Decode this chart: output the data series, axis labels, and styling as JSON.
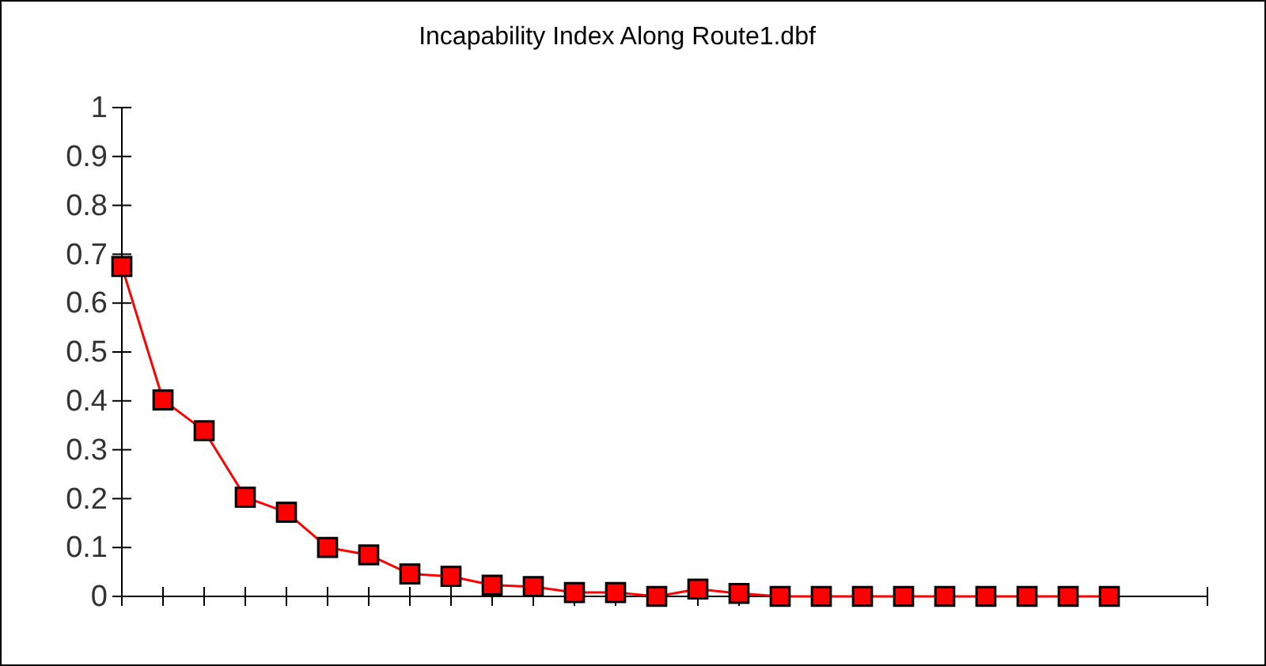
{
  "chart_data": {
    "type": "line",
    "title": "Incapability Index Along Route1.dbf",
    "categories": [
      null,
      null,
      null,
      null,
      null,
      null,
      null,
      null,
      null,
      null,
      null,
      null,
      null,
      null,
      null,
      null,
      null,
      null,
      null,
      null,
      null,
      null,
      null,
      null,
      null
    ],
    "series": [
      {
        "color": "#ff0000",
        "values": [
          0.675,
          0.402,
          0.339,
          0.203,
          0.172,
          0.1,
          0.085,
          0.046,
          0.041,
          0.023,
          0.02,
          0.008,
          0.008,
          0,
          0.015,
          0.006,
          0,
          0,
          0,
          0,
          0,
          0,
          0,
          0,
          0
        ]
      }
    ],
    "ylim": [
      0,
      1
    ],
    "yticks": [
      0,
      0.1,
      0.2,
      0.3,
      0.4,
      0.5,
      0.6,
      0.7,
      0.8,
      0.9,
      1
    ],
    "grid": false,
    "marker": "square",
    "line_style": "solid"
  }
}
